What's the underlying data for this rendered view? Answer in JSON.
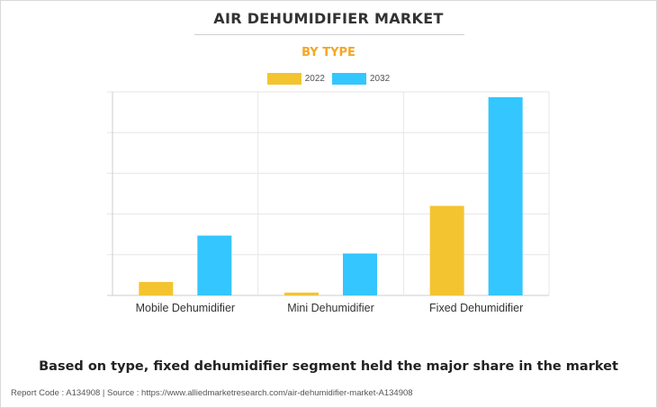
{
  "title": "AIR DEHUMIDIFIER MARKET",
  "subtitle": "BY TYPE",
  "headline": "Based on type, fixed dehumidifier segment held the major share in the market",
  "footer": "Report Code : A134908  |  Source : https://www.alliedmarketresearch.com/air-dehumidifier-market-A134908",
  "colors": {
    "subtitle": "#f5a623",
    "series_2022": "#f4c430",
    "series_2032": "#33c6ff",
    "grid": "#e6e6e6",
    "axis": "#cccccc"
  },
  "chart_data": {
    "type": "bar",
    "categories": [
      "Mobile Dehumidifier",
      "Mini Dehumidifier",
      "Fixed Dehumidifier"
    ],
    "series": [
      {
        "name": "2022",
        "values": [
          3.3,
          0.7,
          22.0
        ]
      },
      {
        "name": "2032",
        "values": [
          14.7,
          10.3,
          48.7
        ]
      }
    ],
    "ylim": [
      0,
      50
    ],
    "yticks": [
      0,
      10,
      20,
      30,
      40,
      50
    ],
    "ytick_labels_shown": false,
    "grid": true,
    "legend": "top-center",
    "xlabel": "",
    "ylabel": ""
  }
}
